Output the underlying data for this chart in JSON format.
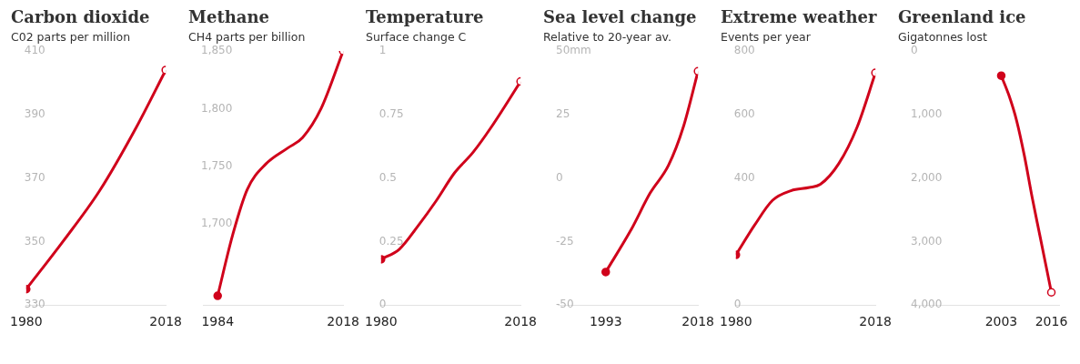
{
  "chart_data": [
    {
      "type": "line",
      "title": "Carbon dioxide",
      "subtitle": "C02 parts per million",
      "x": [
        1980,
        1990,
        2000,
        2010,
        2018
      ],
      "values": [
        335,
        350,
        366,
        386,
        404
      ],
      "color": "#d0021b",
      "xlim": [
        1980,
        2018
      ],
      "xticks": [
        1980,
        2018
      ],
      "ylim": [
        330,
        410
      ],
      "yticks": [
        330,
        350,
        370,
        390,
        410
      ]
    },
    {
      "type": "line",
      "title": "Methane",
      "subtitle": "CH4 parts per billion",
      "x": [
        1984,
        1988,
        1992,
        1997,
        2003,
        2007,
        2012,
        2018
      ],
      "values": [
        1638,
        1690,
        1730,
        1752,
        1766,
        1775,
        1800,
        1850
      ],
      "color": "#d0021b",
      "xlim": [
        1980,
        2018
      ],
      "xticks": [
        1984,
        2018
      ],
      "ylim": [
        1630,
        1850
      ],
      "yticks": [
        {
          "value": 1700,
          "label": "1,700"
        },
        {
          "value": 1750,
          "label": "1,750"
        },
        {
          "value": 1800,
          "label": "1,800"
        },
        {
          "value": 1850,
          "label": "1,850"
        }
      ]
    },
    {
      "type": "line",
      "title": "Temperature",
      "subtitle": "Surface change C",
      "x": [
        1980,
        1985,
        1990,
        1995,
        2000,
        2005,
        2010,
        2018
      ],
      "values": [
        0.18,
        0.22,
        0.31,
        0.41,
        0.52,
        0.6,
        0.7,
        0.88
      ],
      "color": "#d0021b",
      "xlim": [
        1980,
        2018
      ],
      "xticks": [
        1980,
        2018
      ],
      "ylim": [
        0,
        1
      ],
      "yticks": [
        0,
        0.25,
        0.5,
        0.75,
        1
      ]
    },
    {
      "type": "line",
      "title": "Sea level change",
      "subtitle": "Relative to 20-year av.",
      "x": [
        1993,
        2000,
        2005,
        2010,
        2014,
        2018
      ],
      "values": [
        -37,
        -20,
        -6,
        5,
        20,
        42
      ],
      "color": "#d0021b",
      "xlim": [
        1980,
        2018
      ],
      "xticks": [
        1993,
        2018
      ],
      "ylim": [
        -50,
        50
      ],
      "yticks": [
        -50,
        -25,
        0,
        25,
        {
          "value": 50,
          "label": "50mm"
        }
      ]
    },
    {
      "type": "line",
      "title": "Extreme weather",
      "subtitle": "Events per year",
      "x": [
        1980,
        1985,
        1990,
        1995,
        2000,
        2003,
        2008,
        2013,
        2018
      ],
      "values": [
        158,
        250,
        330,
        360,
        370,
        380,
        445,
        560,
        731
      ],
      "color": "#d0021b",
      "xlim": [
        1980,
        2018
      ],
      "xticks": [
        1980,
        2018
      ],
      "ylim": [
        0,
        800
      ],
      "yticks": [
        0,
        400,
        600,
        800
      ]
    },
    {
      "type": "line",
      "title": "Greenland ice",
      "subtitle": "Gigatonnes lost",
      "x": [
        2003,
        2005,
        2007,
        2009,
        2011,
        2013,
        2016
      ],
      "values": [
        390,
        700,
        1100,
        1650,
        2300,
        2900,
        3800
      ],
      "color": "#d0021b",
      "xlim": [
        1980,
        2018
      ],
      "xticks": [
        2003,
        2016
      ],
      "ylim": [
        4000,
        0
      ],
      "yticks": [
        0,
        {
          "value": 1000,
          "label": "1,000"
        },
        {
          "value": 2000,
          "label": "2,000"
        },
        {
          "value": 3000,
          "label": "3,000"
        },
        {
          "value": 4000,
          "label": "4,000"
        }
      ]
    }
  ]
}
